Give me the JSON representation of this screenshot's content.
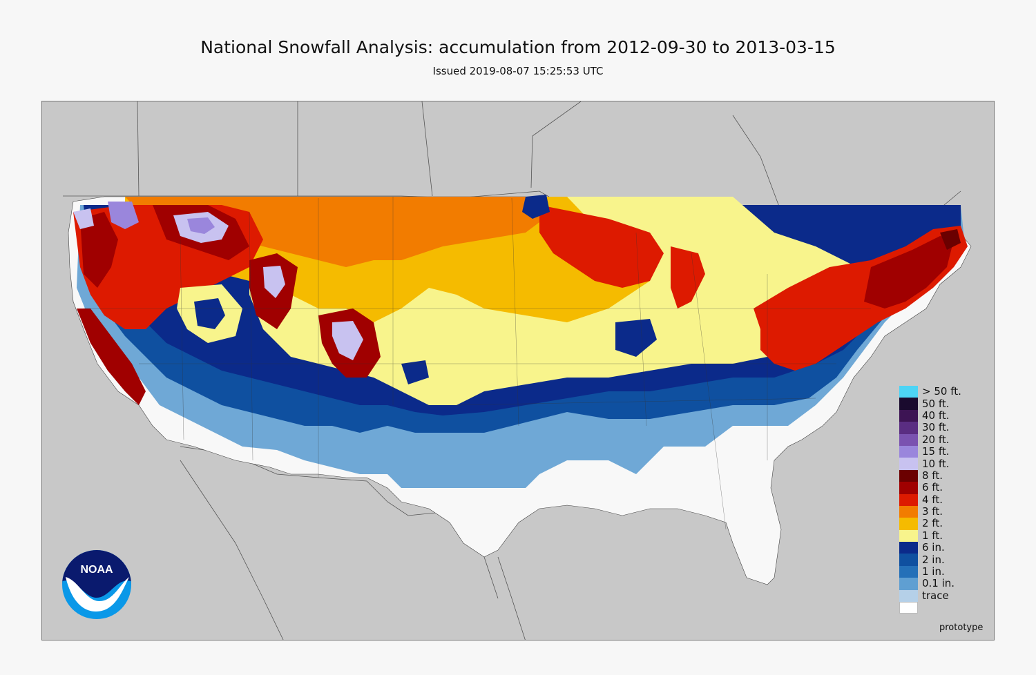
{
  "header": {
    "title": "National Snowfall Analysis: accumulation from 2012-09-30 to 2013-03-15",
    "issued": "Issued 2019-08-07 15:25:53 UTC"
  },
  "legend": {
    "items": [
      {
        "label": "> 50 ft.",
        "color": "#4dd4f5"
      },
      {
        "label": "50 ft.",
        "color": "#1a0a2e"
      },
      {
        "label": "40 ft.",
        "color": "#3d1454"
      },
      {
        "label": "30 ft.",
        "color": "#5a2d82"
      },
      {
        "label": "20 ft.",
        "color": "#7a52b0"
      },
      {
        "label": "15 ft.",
        "color": "#9a86dc"
      },
      {
        "label": "10 ft.",
        "color": "#c8c2f0"
      },
      {
        "label": "8 ft.",
        "color": "#6b0000"
      },
      {
        "label": "6 ft.",
        "color": "#a00000"
      },
      {
        "label": "4 ft.",
        "color": "#dd1a00"
      },
      {
        "label": "3 ft.",
        "color": "#f27c00"
      },
      {
        "label": "2 ft.",
        "color": "#f5bb00"
      },
      {
        "label": "1 ft.",
        "color": "#f8f48c"
      },
      {
        "label": "6 in.",
        "color": "#0b2a8a"
      },
      {
        "label": "2 in.",
        "color": "#0f50a0"
      },
      {
        "label": "1 in.",
        "color": "#2470b8"
      },
      {
        "label": "0.1 in.",
        "color": "#5f9fd2"
      },
      {
        "label": "trace",
        "color": "#b5d0e8"
      },
      {
        "label": "",
        "color": "#ffffff"
      }
    ]
  },
  "footer": {
    "prototype_label": "prototype"
  },
  "logo": {
    "text": "NOAA",
    "icon": "noaa-logo-icon"
  },
  "map_colors": {
    "background": "#c8c8c8",
    "trace": "#f8f8f8"
  }
}
